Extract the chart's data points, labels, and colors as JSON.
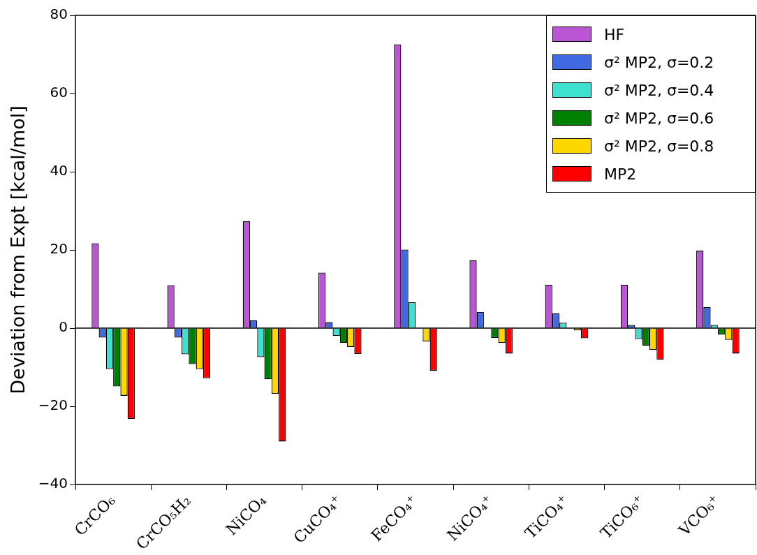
{
  "chart_data": {
    "type": "bar",
    "ylabel": "Deviation from Expt [kcal/mol]",
    "categories": [
      "CrCO₆",
      "CrCO₅H₂",
      "NiCO₄",
      "CuCO₄⁺",
      "FeCO₄⁺",
      "NiCO₄⁺",
      "TiCO₄⁺",
      "TiCO₆⁺",
      "VCO₆⁺"
    ],
    "series": [
      {
        "name": "HF",
        "color": "#ba55d3",
        "values": [
          21.7,
          11.0,
          27.3,
          14.2,
          72.6,
          17.3,
          11.1,
          11.1,
          19.8
        ]
      },
      {
        "name": "σ² MP2, σ=0.2",
        "color": "#4169e1",
        "values": [
          -2.4,
          -2.4,
          2.0,
          1.5,
          20.1,
          4.1,
          3.8,
          0.8,
          5.4
        ]
      },
      {
        "name": "σ² MP2, σ=0.4",
        "color": "#40e0d0",
        "values": [
          -10.5,
          -6.7,
          -7.4,
          -2.0,
          6.6,
          null,
          1.4,
          -2.8,
          0.8
        ]
      },
      {
        "name": "σ² MP2, σ=0.6",
        "color": "#008000",
        "values": [
          -14.9,
          -9.2,
          -13.1,
          -3.8,
          0,
          -2.5,
          0,
          -4.5,
          -1.7
        ]
      },
      {
        "name": "σ² MP2, σ=0.8",
        "color": "#ffd700",
        "values": [
          -17.3,
          -10.5,
          -16.8,
          -4.8,
          -3.4,
          -3.8,
          -0.6,
          -5.6,
          -3.0
        ]
      },
      {
        "name": "MP2",
        "color": "#ff0000",
        "values": [
          -23.2,
          -12.8,
          -29.0,
          -6.6,
          -10.9,
          -6.5,
          -2.6,
          -8.1,
          -6.5
        ]
      }
    ],
    "ylim": [
      -40,
      80
    ],
    "yticks": [
      -40,
      -20,
      0,
      20,
      40,
      60,
      80
    ],
    "ref_lines": [
      {
        "axis": "y",
        "value": 0,
        "color": "#000000"
      }
    ],
    "legend": "top right"
  }
}
